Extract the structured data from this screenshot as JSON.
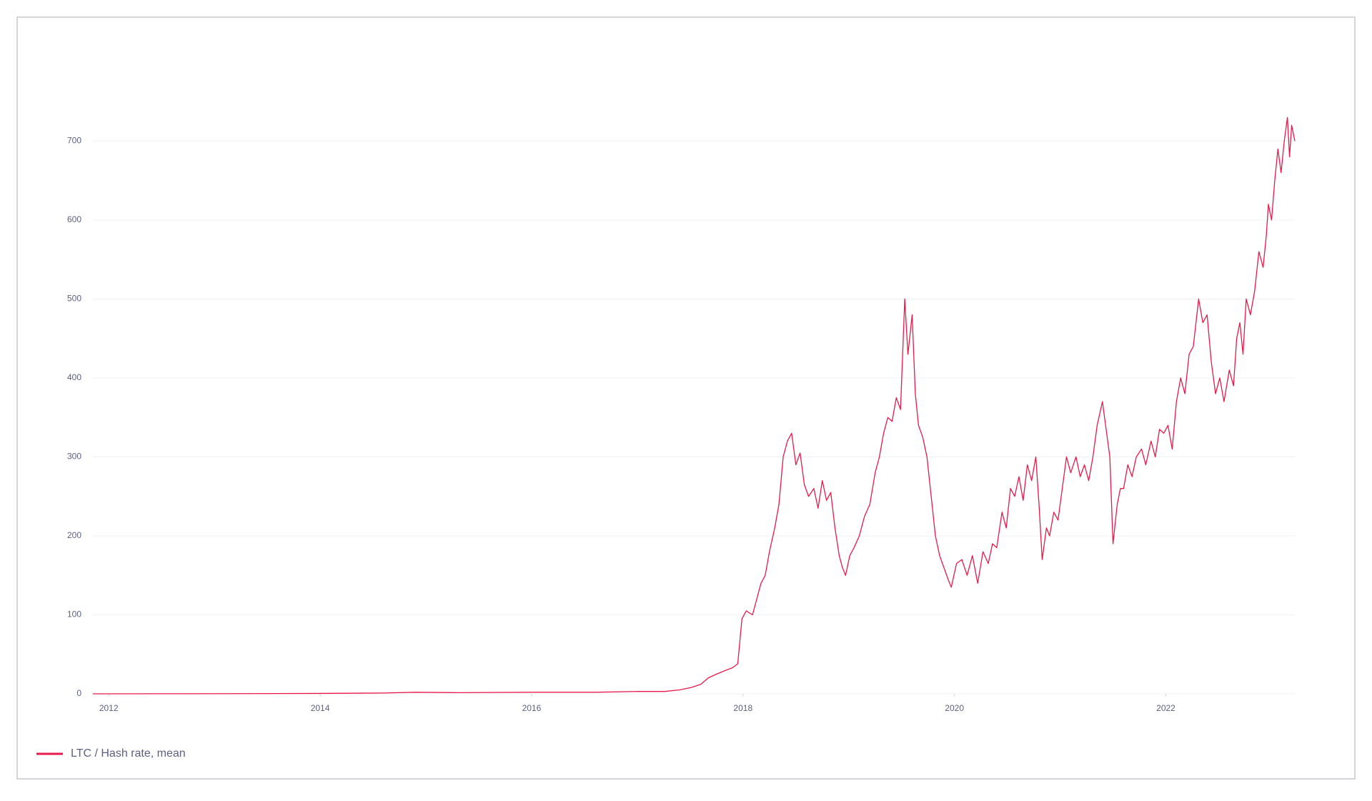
{
  "chart_data": {
    "type": "line",
    "x": [
      2011.85,
      2012.5,
      2013.2,
      2014.0,
      2014.6,
      2014.9,
      2015.3,
      2016.0,
      2016.6,
      2017.0,
      2017.26,
      2017.4,
      2017.51,
      2017.6,
      2017.67,
      2017.75,
      2017.84,
      2017.9,
      2017.95,
      2017.99,
      2018.03,
      2018.09,
      2018.13,
      2018.17,
      2018.21,
      2018.25,
      2018.3,
      2018.34,
      2018.38,
      2018.42,
      2018.46,
      2018.5,
      2018.54,
      2018.58,
      2018.62,
      2018.67,
      2018.71,
      2018.75,
      2018.79,
      2018.83,
      2018.87,
      2018.91,
      2018.94,
      2018.97,
      2019.01,
      2019.05,
      2019.1,
      2019.15,
      2019.2,
      2019.25,
      2019.29,
      2019.33,
      2019.37,
      2019.41,
      2019.45,
      2019.49,
      2019.53,
      2019.56,
      2019.6,
      2019.63,
      2019.66,
      2019.7,
      2019.74,
      2019.78,
      2019.82,
      2019.86,
      2019.9,
      2019.94,
      2019.97,
      2020.02,
      2020.07,
      2020.12,
      2020.17,
      2020.22,
      2020.27,
      2020.32,
      2020.36,
      2020.4,
      2020.45,
      2020.49,
      2020.53,
      2020.57,
      2020.61,
      2020.65,
      2020.69,
      2020.73,
      2020.77,
      2020.8,
      2020.83,
      2020.87,
      2020.9,
      2020.94,
      2020.98,
      2021.02,
      2021.06,
      2021.1,
      2021.15,
      2021.19,
      2021.23,
      2021.27,
      2021.31,
      2021.35,
      2021.4,
      2021.44,
      2021.47,
      2021.5,
      2021.54,
      2021.57,
      2021.6,
      2021.64,
      2021.68,
      2021.72,
      2021.77,
      2021.81,
      2021.86,
      2021.9,
      2021.94,
      2021.98,
      2022.02,
      2022.06,
      2022.1,
      2022.14,
      2022.18,
      2022.22,
      2022.26,
      2022.31,
      2022.35,
      2022.39,
      2022.43,
      2022.47,
      2022.51,
      2022.55,
      2022.6,
      2022.64,
      2022.67,
      2022.7,
      2022.73,
      2022.76,
      2022.8,
      2022.84,
      2022.88,
      2022.92,
      2022.95,
      2022.97,
      2023.0,
      2023.03,
      2023.06,
      2023.09,
      2023.12,
      2023.15,
      2023.17,
      2023.19,
      2023.22
    ],
    "series": [
      {
        "name": "LTC / Hash rate, mean",
        "color": "#e8194a",
        "values": [
          0,
          0.1,
          0.2,
          0.5,
          1,
          2,
          1.5,
          2,
          2,
          3,
          3,
          5,
          8,
          12,
          20,
          25,
          30,
          33,
          38,
          95,
          105,
          100,
          120,
          140,
          150,
          180,
          210,
          240,
          300,
          320,
          330,
          290,
          305,
          265,
          250,
          260,
          235,
          270,
          245,
          255,
          210,
          175,
          160,
          150,
          175,
          185,
          200,
          225,
          240,
          280,
          300,
          330,
          350,
          345,
          375,
          360,
          500,
          430,
          480,
          380,
          340,
          325,
          300,
          250,
          200,
          175,
          160,
          145,
          135,
          165,
          170,
          150,
          175,
          140,
          180,
          165,
          190,
          185,
          230,
          210,
          260,
          250,
          275,
          245,
          290,
          270,
          300,
          240,
          170,
          210,
          200,
          230,
          220,
          260,
          300,
          280,
          300,
          275,
          290,
          270,
          300,
          340,
          370,
          330,
          300,
          190,
          240,
          260,
          260,
          290,
          275,
          300,
          310,
          290,
          320,
          300,
          335,
          330,
          340,
          310,
          370,
          400,
          380,
          430,
          440,
          500,
          470,
          480,
          420,
          380,
          400,
          370,
          410,
          390,
          450,
          470,
          430,
          500,
          480,
          510,
          560,
          540,
          580,
          620,
          600,
          650,
          690,
          660,
          700,
          730,
          680,
          720,
          700
        ]
      }
    ],
    "xlim": [
      2011.85,
      2023.22
    ],
    "xticks": [
      2012,
      2014,
      2016,
      2018,
      2020,
      2022
    ],
    "ylim": [
      0,
      780
    ],
    "yticks": [
      0,
      100,
      200,
      300,
      400,
      500,
      600,
      700
    ],
    "grid": true
  }
}
